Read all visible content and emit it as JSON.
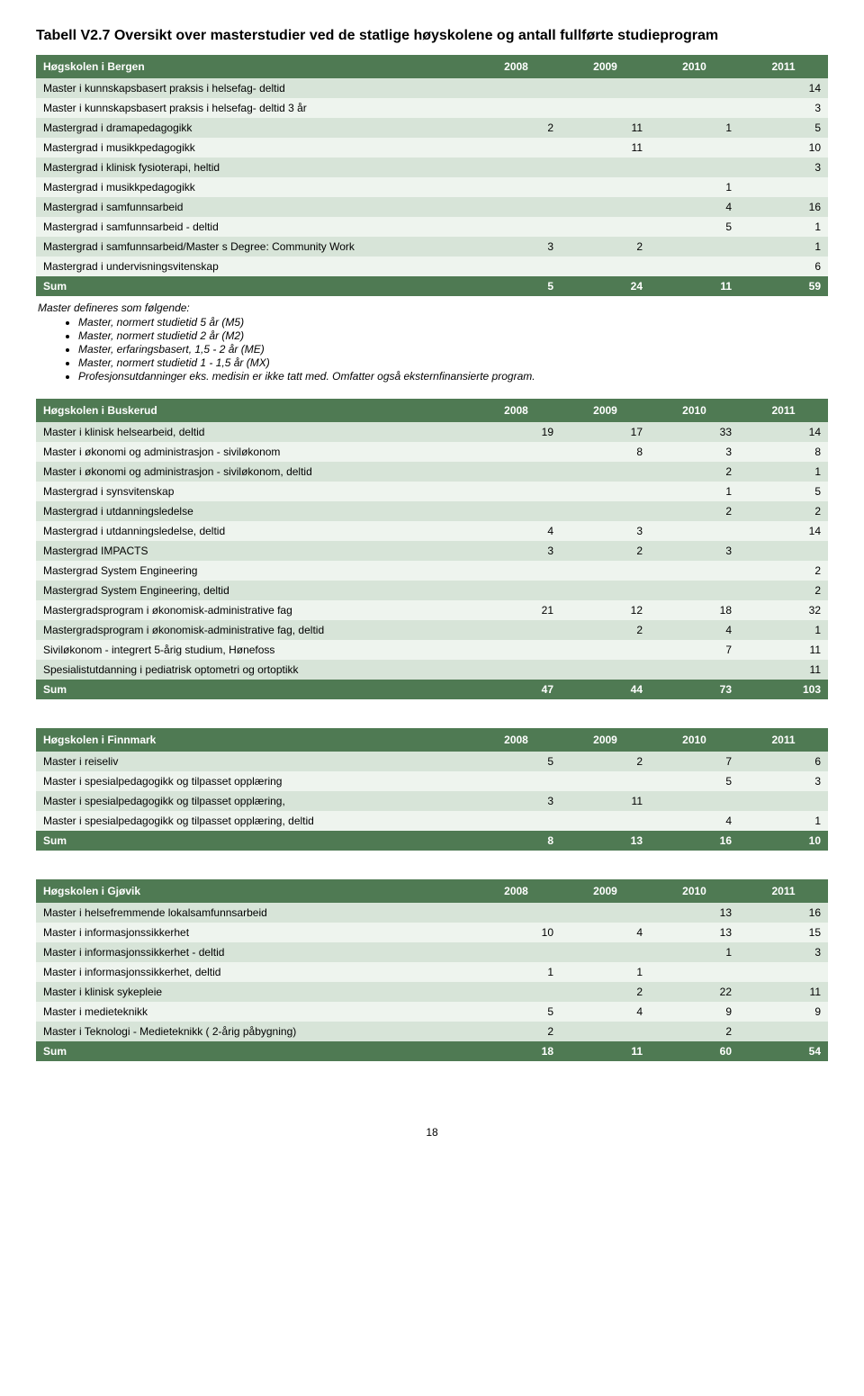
{
  "title": "Tabell V2.7 Oversikt over masterstudier ved de statlige høyskolene og antall fullførte studieprogram",
  "years": [
    "2008",
    "2009",
    "2010",
    "2011"
  ],
  "colors": {
    "header_bg": "#4f7a53",
    "header_fg": "#ffffff",
    "row_odd": "#d7e4d8",
    "row_even": "#eef4ee"
  },
  "tables": [
    {
      "school": "Høgskolen i Bergen",
      "rows": [
        {
          "label": "Master i kunnskapsbasert praksis i helsefag- deltid",
          "v": [
            "",
            "",
            "",
            "14"
          ]
        },
        {
          "label": "Master i kunnskapsbasert praksis i helsefag- deltid 3 år",
          "v": [
            "",
            "",
            "",
            "3"
          ]
        },
        {
          "label": "Mastergrad i dramapedagogikk",
          "v": [
            "2",
            "11",
            "1",
            "5"
          ]
        },
        {
          "label": "Mastergrad i musikkpedagogikk",
          "v": [
            "",
            "11",
            "",
            "10"
          ]
        },
        {
          "label": "Mastergrad i klinisk fysioterapi, heltid",
          "v": [
            "",
            "",
            "",
            "3"
          ]
        },
        {
          "label": "Mastergrad i musikkpedagogikk",
          "v": [
            "",
            "",
            "1",
            ""
          ]
        },
        {
          "label": "Mastergrad i samfunnsarbeid",
          "v": [
            "",
            "",
            "4",
            "16"
          ]
        },
        {
          "label": "Mastergrad i samfunnsarbeid - deltid",
          "v": [
            "",
            "",
            "5",
            "1"
          ]
        },
        {
          "label": "Mastergrad i samfunnsarbeid/Master s Degree: Community Work",
          "v": [
            "3",
            "2",
            "",
            "1"
          ]
        },
        {
          "label": "Mastergrad i undervisningsvitenskap",
          "v": [
            "",
            "",
            "",
            "6"
          ]
        }
      ],
      "sum": {
        "label": "Sum",
        "v": [
          "5",
          "24",
          "11",
          "59"
        ]
      }
    },
    {
      "school": "Høgskolen i Buskerud",
      "rows": [
        {
          "label": "Master i klinisk helsearbeid, deltid",
          "v": [
            "19",
            "17",
            "33",
            "14"
          ]
        },
        {
          "label": "Master i økonomi og administrasjon - siviløkonom",
          "v": [
            "",
            "8",
            "3",
            "8"
          ]
        },
        {
          "label": "Master i økonomi og administrasjon - siviløkonom, deltid",
          "v": [
            "",
            "",
            "2",
            "1"
          ]
        },
        {
          "label": "Mastergrad i synsvitenskap",
          "v": [
            "",
            "",
            "1",
            "5"
          ]
        },
        {
          "label": "Mastergrad i utdanningsledelse",
          "v": [
            "",
            "",
            "2",
            "2"
          ]
        },
        {
          "label": "Mastergrad i utdanningsledelse, deltid",
          "v": [
            "4",
            "3",
            "",
            "14"
          ]
        },
        {
          "label": "Mastergrad IMPACTS",
          "v": [
            "3",
            "2",
            "3",
            ""
          ]
        },
        {
          "label": "Mastergrad System Engineering",
          "v": [
            "",
            "",
            "",
            "2"
          ]
        },
        {
          "label": "Mastergrad System Engineering, deltid",
          "v": [
            "",
            "",
            "",
            "2"
          ]
        },
        {
          "label": "Mastergradsprogram i økonomisk-administrative fag",
          "v": [
            "21",
            "12",
            "18",
            "32"
          ]
        },
        {
          "label": "Mastergradsprogram i økonomisk-administrative fag, deltid",
          "v": [
            "",
            "2",
            "4",
            "1"
          ]
        },
        {
          "label": "Siviløkonom - integrert 5-årig studium, Hønefoss",
          "v": [
            "",
            "",
            "7",
            "11"
          ]
        },
        {
          "label": "Spesialistutdanning i pediatrisk optometri og ortoptikk",
          "v": [
            "",
            "",
            "",
            "11"
          ]
        }
      ],
      "sum": {
        "label": "Sum",
        "v": [
          "47",
          "44",
          "73",
          "103"
        ]
      }
    },
    {
      "school": "Høgskolen i Finnmark",
      "rows": [
        {
          "label": "Master i reiseliv",
          "v": [
            "5",
            "2",
            "7",
            "6"
          ]
        },
        {
          "label": "Master i spesialpedagogikk og tilpasset opplæring",
          "v": [
            "",
            "",
            "5",
            "3"
          ]
        },
        {
          "label": "Master i spesialpedagogikk og tilpasset opplæring,",
          "v": [
            "3",
            "11",
            "",
            ""
          ]
        },
        {
          "label": "Master i spesialpedagogikk og tilpasset opplæring, deltid",
          "v": [
            "",
            "",
            "4",
            "1"
          ]
        }
      ],
      "sum": {
        "label": "Sum",
        "v": [
          "8",
          "13",
          "16",
          "10"
        ]
      }
    },
    {
      "school": "Høgskolen i Gjøvik",
      "rows": [
        {
          "label": "Master i helsefremmende lokalsamfunnsarbeid",
          "v": [
            "",
            "",
            "13",
            "16"
          ]
        },
        {
          "label": "Master i informasjonssikkerhet",
          "v": [
            "10",
            "4",
            "13",
            "15"
          ]
        },
        {
          "label": "Master i informasjonssikkerhet - deltid",
          "v": [
            "",
            "",
            "1",
            "3"
          ]
        },
        {
          "label": "Master i informasjonssikkerhet, deltid",
          "v": [
            "1",
            "1",
            "",
            ""
          ]
        },
        {
          "label": "Master i klinisk sykepleie",
          "v": [
            "",
            "2",
            "22",
            "11"
          ]
        },
        {
          "label": "Master i medieteknikk",
          "v": [
            "5",
            "4",
            "9",
            "9"
          ]
        },
        {
          "label": "Master i Teknologi - Medieteknikk ( 2-årig påbygning)",
          "v": [
            "2",
            "",
            "2",
            ""
          ]
        }
      ],
      "sum": {
        "label": "Sum",
        "v": [
          "18",
          "11",
          "60",
          "54"
        ]
      }
    }
  ],
  "notes": {
    "lead": "Master defineres som følgende:",
    "items": [
      "Master, normert studietid 5 år (M5)",
      "Master, normert studietid 2 år (M2)",
      "Master, erfaringsbasert, 1,5 - 2 år (ME)",
      "Master, normert studietid 1 - 1,5 år (MX)",
      "Profesjonsutdanninger eks. medisin er ikke tatt med. Omfatter også eksternfinansierte program."
    ]
  },
  "page_number": "18"
}
